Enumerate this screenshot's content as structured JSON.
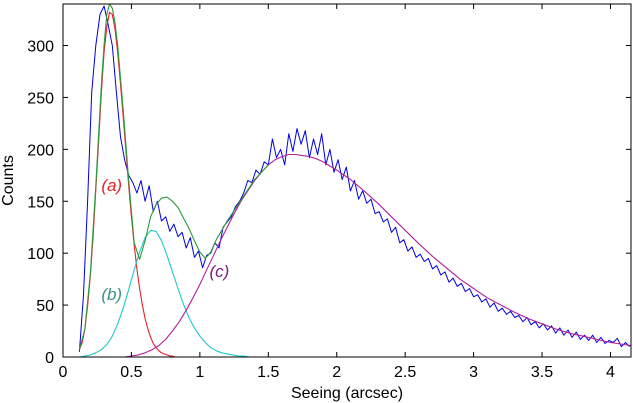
{
  "chart_data": {
    "type": "line",
    "title": "",
    "xlabel": "Seeing (arcsec)",
    "ylabel": "Counts",
    "xlim": [
      0,
      4.15
    ],
    "ylim": [
      0,
      340
    ],
    "x_ticks": [
      0,
      0.5,
      1,
      1.5,
      2,
      2.5,
      3,
      3.5,
      4
    ],
    "x_tick_labels": [
      "0",
      "0.5",
      "1",
      "1.5",
      "2",
      "2.5",
      "3",
      "3.5",
      "4"
    ],
    "y_ticks": [
      0,
      50,
      100,
      150,
      200,
      250,
      300
    ],
    "y_tick_labels": [
      "0",
      "50",
      "100",
      "150",
      "200",
      "250",
      "300"
    ],
    "grid": false,
    "legend": "none",
    "annotations": [
      {
        "text": "(a)",
        "x": 0.28,
        "y": 160,
        "color": "#e8202a"
      },
      {
        "text": "(b)",
        "x": 0.28,
        "y": 55,
        "color": "#3a8f84"
      },
      {
        "text": "(c)",
        "x": 1.07,
        "y": 77,
        "color": "#7a1a7a"
      }
    ],
    "series": [
      {
        "color": "#0000e0",
        "style": "histogram",
        "x": [
          0.12,
          0.15,
          0.18,
          0.21,
          0.24,
          0.27,
          0.3,
          0.33,
          0.36,
          0.39,
          0.42,
          0.45,
          0.48,
          0.51,
          0.54,
          0.57,
          0.6,
          0.63,
          0.66,
          0.69,
          0.72,
          0.75,
          0.78,
          0.81,
          0.84,
          0.87,
          0.9,
          0.93,
          0.96,
          0.99,
          1.02,
          1.05,
          1.08,
          1.11,
          1.14,
          1.17,
          1.2,
          1.23,
          1.26,
          1.29,
          1.32,
          1.35,
          1.38,
          1.41,
          1.44,
          1.47,
          1.5,
          1.53,
          1.56,
          1.59,
          1.62,
          1.65,
          1.68,
          1.71,
          1.74,
          1.77,
          1.8,
          1.83,
          1.86,
          1.89,
          1.92,
          1.95,
          1.98,
          2.01,
          2.04,
          2.07,
          2.1,
          2.13,
          2.16,
          2.19,
          2.22,
          2.25,
          2.28,
          2.31,
          2.34,
          2.37,
          2.4,
          2.43,
          2.46,
          2.49,
          2.52,
          2.55,
          2.58,
          2.61,
          2.64,
          2.67,
          2.7,
          2.73,
          2.76,
          2.79,
          2.82,
          2.85,
          2.88,
          2.91,
          2.94,
          2.97,
          3.0,
          3.03,
          3.06,
          3.09,
          3.12,
          3.15,
          3.18,
          3.21,
          3.24,
          3.27,
          3.3,
          3.33,
          3.36,
          3.39,
          3.42,
          3.45,
          3.48,
          3.51,
          3.54,
          3.57,
          3.6,
          3.63,
          3.66,
          3.69,
          3.72,
          3.75,
          3.78,
          3.81,
          3.84,
          3.87,
          3.9,
          3.93,
          3.96,
          3.99,
          4.02,
          4.05,
          4.08,
          4.11,
          4.14
        ],
        "y": [
          5,
          60,
          150,
          255,
          300,
          330,
          338,
          320,
          300,
          255,
          212,
          190,
          175,
          168,
          158,
          170,
          150,
          165,
          140,
          150,
          131,
          135,
          121,
          128,
          116,
          120,
          105,
          115,
          96,
          102,
          86,
          98,
          100,
          110,
          105,
          125,
          130,
          135,
          145,
          150,
          158,
          170,
          168,
          180,
          176,
          188,
          185,
          210,
          192,
          200,
          185,
          215,
          198,
          220,
          205,
          218,
          192,
          210,
          195,
          215,
          185,
          200,
          178,
          190,
          171,
          183,
          160,
          170,
          152,
          160,
          148,
          152,
          138,
          140,
          130,
          133,
          120,
          125,
          110,
          113,
          102,
          106,
          96,
          99,
          92,
          95,
          85,
          88,
          79,
          82,
          72,
          76,
          68,
          71,
          63,
          66,
          58,
          60,
          53,
          56,
          48,
          52,
          44,
          47,
          41,
          44,
          38,
          40,
          34,
          38,
          31,
          34,
          28,
          32,
          26,
          30,
          23,
          28,
          21,
          26,
          19,
          24,
          17,
          21,
          16,
          21,
          14,
          19,
          13,
          16,
          14,
          18,
          10,
          14,
          10
        ]
      },
      {
        "color": "#e8202a",
        "style": "line",
        "x": [
          0.12,
          0.14,
          0.16,
          0.18,
          0.2,
          0.22,
          0.24,
          0.26,
          0.28,
          0.3,
          0.32,
          0.34,
          0.36,
          0.38,
          0.4,
          0.42,
          0.44,
          0.46,
          0.48,
          0.5,
          0.52,
          0.54,
          0.56,
          0.58,
          0.6,
          0.62,
          0.64,
          0.66,
          0.68,
          0.7,
          0.72,
          0.74,
          0.76,
          0.78,
          0.8,
          0.82,
          0.84,
          0.86,
          0.88,
          0.9,
          0.92,
          0.94,
          0.96,
          0.98,
          1.0,
          1.04,
          1.08,
          1.12,
          1.16,
          1.2
        ],
        "y": [
          7,
          14,
          27,
          49,
          79,
          116,
          161,
          207,
          254,
          294,
          318,
          332,
          330,
          316,
          293,
          263,
          231,
          198,
          165,
          135,
          108,
          85,
          66,
          50,
          37,
          27,
          19,
          13,
          9,
          6,
          4,
          3,
          2,
          1,
          1,
          0,
          0,
          0,
          0,
          0,
          0,
          0,
          0,
          0,
          0,
          0,
          0,
          0,
          0,
          0
        ]
      },
      {
        "color": "#1ec8c8",
        "style": "line",
        "x": [
          0.12,
          0.16,
          0.2,
          0.24,
          0.28,
          0.32,
          0.36,
          0.4,
          0.44,
          0.48,
          0.52,
          0.56,
          0.6,
          0.64,
          0.68,
          0.72,
          0.76,
          0.8,
          0.84,
          0.88,
          0.92,
          0.96,
          1.0,
          1.04,
          1.08,
          1.12,
          1.16,
          1.2,
          1.24,
          1.28,
          1.32,
          1.36,
          1.4,
          1.44,
          1.48,
          1.52,
          1.56,
          1.6,
          1.64,
          1.68,
          1.72
        ],
        "y": [
          0,
          1,
          2,
          4,
          7,
          12,
          20,
          32,
          47,
          65,
          84,
          101,
          115,
          122,
          121,
          112,
          98,
          82,
          66,
          51,
          38,
          28,
          20,
          14,
          9,
          6,
          4,
          3,
          2,
          1,
          1,
          0,
          0,
          0,
          0,
          0,
          0,
          0,
          0,
          0,
          0
        ]
      },
      {
        "color": "#b0209a",
        "style": "line",
        "x": [
          0.45,
          0.5,
          0.55,
          0.6,
          0.65,
          0.7,
          0.75,
          0.8,
          0.85,
          0.9,
          0.95,
          1.0,
          1.05,
          1.1,
          1.15,
          1.2,
          1.25,
          1.3,
          1.35,
          1.4,
          1.45,
          1.5,
          1.55,
          1.6,
          1.65,
          1.7,
          1.75,
          1.8,
          1.85,
          1.9,
          1.95,
          2.0,
          2.1,
          2.2,
          2.3,
          2.4,
          2.5,
          2.6,
          2.7,
          2.8,
          2.9,
          3.0,
          3.1,
          3.2,
          3.3,
          3.4,
          3.5,
          3.6,
          3.7,
          3.8,
          3.9,
          4.0,
          4.1,
          4.15
        ],
        "y": [
          0,
          1,
          2,
          4,
          7,
          11,
          17,
          25,
          34,
          45,
          57,
          70,
          84,
          98,
          112,
          125,
          138,
          150,
          160,
          170,
          178,
          185,
          190,
          193,
          195,
          195,
          194,
          193,
          191,
          188,
          184,
          180,
          171,
          160,
          148,
          135,
          122,
          109,
          97,
          86,
          75,
          66,
          57,
          50,
          43,
          37,
          32,
          27,
          23,
          20,
          17,
          14,
          12,
          11
        ]
      },
      {
        "color": "#2a9a3a",
        "style": "line",
        "x": [
          0.12,
          0.16,
          0.2,
          0.24,
          0.28,
          0.3,
          0.32,
          0.34,
          0.36,
          0.38,
          0.4,
          0.44,
          0.48,
          0.52,
          0.56,
          0.6,
          0.64,
          0.68,
          0.72,
          0.76,
          0.8,
          0.84,
          0.88,
          0.92,
          0.96,
          1.0,
          1.04,
          1.08,
          1.12,
          1.16,
          1.2,
          1.25,
          1.3,
          1.35,
          1.4,
          1.45,
          1.5
        ],
        "y": [
          7,
          27,
          81,
          165,
          261,
          301,
          330,
          340,
          336,
          322,
          300,
          238,
          170,
          110,
          94,
          112,
          135,
          147,
          153,
          154,
          150,
          144,
          134,
          124,
          112,
          101,
          95,
          101,
          113,
          122,
          131,
          141,
          151,
          161,
          171,
          178,
          185
        ]
      }
    ]
  }
}
